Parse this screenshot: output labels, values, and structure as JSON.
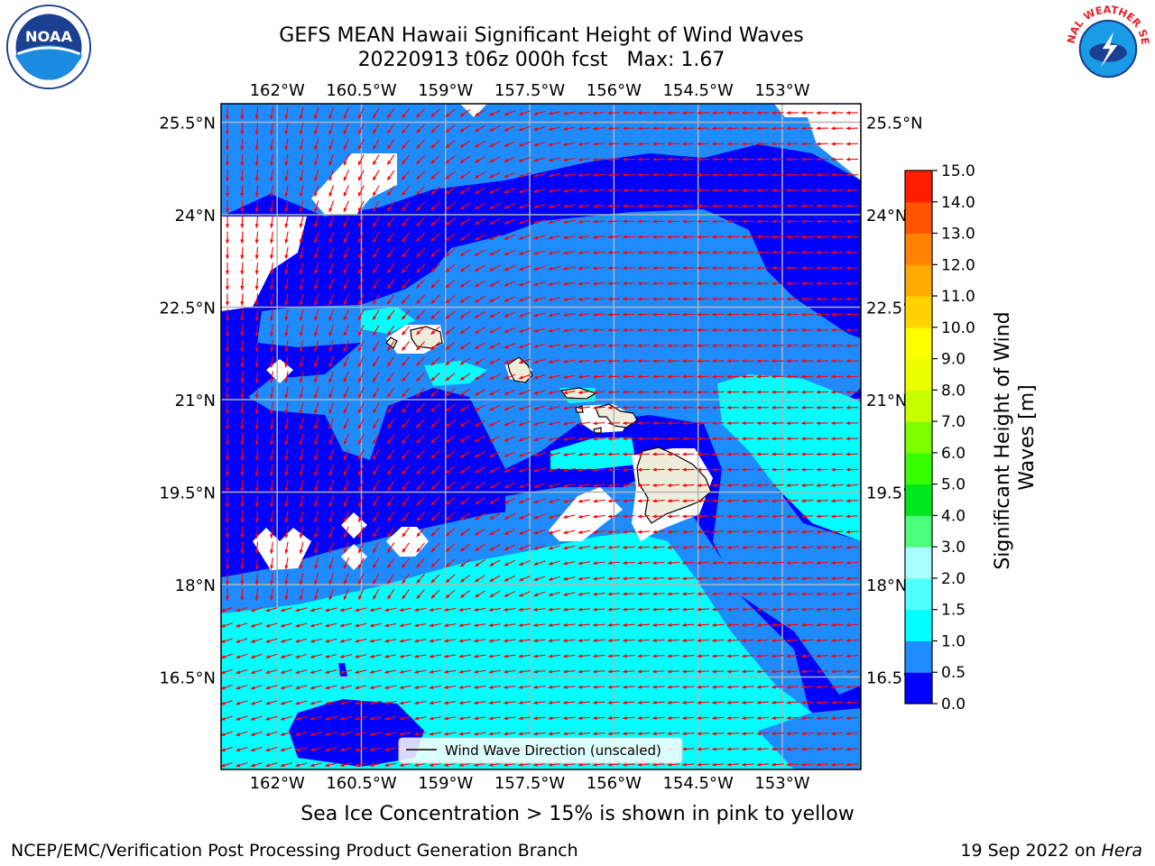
{
  "title": {
    "line1": "GEFS MEAN Hawaii Significant Height of Wind Waves",
    "line2_run": "20220913 t06z 000h fcst",
    "line2_max": "Max: 1.67"
  },
  "caption": "Sea Ice Concentration > 15% is shown in pink to yellow",
  "footer": {
    "left": "NCEP/EMC/Verification Post Processing Product Generation Branch",
    "right_date": "19 Sep 2022 on",
    "right_machine": "Hera"
  },
  "map": {
    "lon_range": [
      -163.0,
      -151.6
    ],
    "lat_range": [
      15.0,
      25.8
    ],
    "lon_ticks": [
      "162°W",
      "160.5°W",
      "159°W",
      "157.5°W",
      "156°W",
      "154.5°W",
      "153°W"
    ],
    "lat_ticks": [
      "25.5°N",
      "24°N",
      "22.5°N",
      "21°N",
      "19.5°N",
      "18°N",
      "16.5°N"
    ],
    "legend_label": "Wind Wave Direction (unscaled)",
    "arrow_color": "#ff0000"
  },
  "colorbar": {
    "label": "Significant Height of Wind Waves [m]",
    "levels": [
      "0.0",
      "0.5",
      "1.0",
      "1.5",
      "2.0",
      "3.0",
      "4.0",
      "5.0",
      "6.0",
      "7.0",
      "8.0",
      "9.0",
      "10.0",
      "11.0",
      "12.0",
      "13.0",
      "14.0",
      "15.0"
    ],
    "colors": [
      "#0000ff",
      "#1e8cff",
      "#00ffff",
      "#50ffff",
      "#aaffff",
      "#4bff7d",
      "#00e61e",
      "#37ff00",
      "#7dff00",
      "#c8ff00",
      "#ebff00",
      "#ffff00",
      "#ffd200",
      "#ffaa00",
      "#ff8200",
      "#ff5500",
      "#ff1e00"
    ]
  },
  "fills": {
    "band_0_05": "#0000ff",
    "band_05_10": "#1e8cff",
    "band_10_15": "#00ffff",
    "band_15_20": "#50ffff",
    "no_data": "#ffffff",
    "land": "#efecdc"
  },
  "logos": {
    "noaa_text": "NOAA",
    "nws_text": "NATIONAL WEATHER SERVICE"
  }
}
